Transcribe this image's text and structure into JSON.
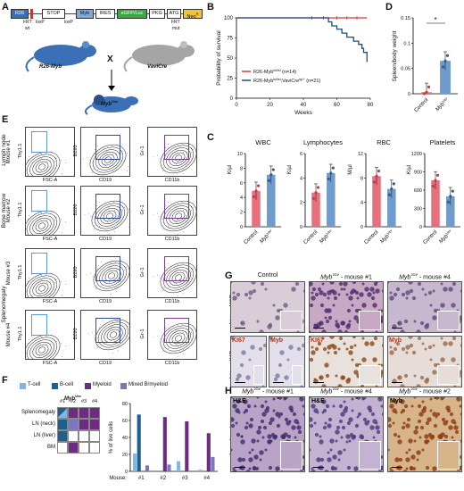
{
  "panels": {
    "A": "A",
    "B": "B",
    "C": "C",
    "D": "D",
    "E": "E",
    "F": "F",
    "G": "G",
    "H": "H"
  },
  "panelA": {
    "construct": [
      "R26",
      "STOP",
      "Myb",
      "IRES",
      "eGFP/Luc",
      "PKG",
      "ATG",
      "Neo"
    ],
    "construct_sup": "R",
    "labels": {
      "frt_wt": "FRT",
      "wt": "wt",
      "loxP1": "loxP",
      "loxP2": "loxP",
      "frt_mut": "FRT",
      "mut": "mut"
    },
    "mouse1": "R26-Myb",
    "mouse2": "VaviCre",
    "cross": "X",
    "offspring": "Myb",
    "offspring_sup": "Vav"
  },
  "panelB": {
    "ylabel": "Probability of survival",
    "xlabel": "Weeks",
    "legend": [
      {
        "name": "R26-Myb",
        "sup": "lsl/lsl",
        "suffix": " (n=14)",
        "color": "#d4373a"
      },
      {
        "name": "R26-Myb",
        "sup": "lsl/lsl",
        "mid": ";VaviCre",
        "sup2": "tg/+",
        "suffix": " (n=21)",
        "color": "#1f4e79"
      }
    ]
  },
  "chart_data": [
    {
      "type": "line",
      "title": "",
      "xlabel": "Weeks",
      "ylabel": "Probability of survival",
      "xlim": [
        0,
        80
      ],
      "ylim": [
        0,
        100
      ],
      "xticks": [
        0,
        20,
        40,
        60,
        80
      ],
      "yticks": [
        0,
        25,
        50,
        75,
        100
      ],
      "series": [
        {
          "name": "R26-Myb lsl/lsl (n=14)",
          "color": "#d4373a",
          "x": [
            0,
            78
          ],
          "y": [
            100,
            100
          ]
        },
        {
          "name": "R26-Myb lsl/lsl;VaviCre tg/+ (n=21)",
          "color": "#1f4e79",
          "x": [
            0,
            52,
            55,
            57,
            60,
            63,
            66,
            70,
            73,
            75,
            76,
            78
          ],
          "y": [
            100,
            100,
            95,
            90,
            86,
            81,
            76,
            71,
            67,
            62,
            57,
            45
          ]
        }
      ]
    },
    {
      "type": "bar",
      "title": "",
      "xlabel": "",
      "ylabel": "Spleen/body weight",
      "ylim": [
        0,
        0.15
      ],
      "yticks": [
        0,
        0.05,
        0.1,
        0.15
      ],
      "categories": [
        "Control",
        "Myb Vav"
      ],
      "values": [
        0.003,
        0.065
      ],
      "annotation": "*"
    },
    {
      "type": "bar",
      "title": "WBC",
      "ylabel": "K/µl",
      "ylim": [
        0,
        10
      ],
      "yticks": [
        0,
        2,
        4,
        6,
        8,
        10
      ],
      "categories": [
        "Control",
        "Myb Vav"
      ],
      "values": [
        4.9,
        7.1
      ]
    },
    {
      "type": "bar",
      "title": "Lymphocytes",
      "ylabel": "K/µl",
      "ylim": [
        0,
        6
      ],
      "yticks": [
        0,
        2,
        4,
        6
      ],
      "categories": [
        "Control",
        "Myb Vav"
      ],
      "values": [
        2.8,
        4.4
      ]
    },
    {
      "type": "bar",
      "title": "RBC",
      "ylabel": "M/µl",
      "ylim": [
        0,
        12
      ],
      "yticks": [
        0,
        4,
        8,
        12
      ],
      "categories": [
        "Control",
        "Myb Vav"
      ],
      "values": [
        8.3,
        6.2
      ]
    },
    {
      "type": "bar",
      "title": "Platelets",
      "ylabel": "K/µl",
      "ylim": [
        0,
        1200
      ],
      "yticks": [
        0,
        300,
        600,
        900,
        1200
      ],
      "categories": [
        "Control",
        "Myb Vav"
      ],
      "values": [
        760,
        500
      ]
    },
    {
      "type": "bar",
      "title": "",
      "ylabel": "% of live cells",
      "ylim": [
        0,
        80
      ],
      "yticks": [
        0,
        20,
        40,
        60,
        80
      ],
      "categories": [
        "#1",
        "#2",
        "#3",
        "#4"
      ],
      "series": [
        {
          "name": "T-cell",
          "color": "#7fb8e6",
          "values": [
            21,
            0,
            12,
            2
          ]
        },
        {
          "name": "B-cell",
          "color": "#1f5f8b",
          "values": [
            67,
            0,
            0,
            0
          ]
        },
        {
          "name": "Myeloid",
          "color": "#6d2c82",
          "values": [
            0,
            64,
            59,
            45
          ]
        },
        {
          "name": "Mixed B/myeloid",
          "color": "#7a76c4",
          "values": [
            7,
            8,
            0,
            17
          ]
        }
      ]
    }
  ],
  "panelC": {
    "x_control": "Control",
    "x_myb": "Myb",
    "x_myb_sup": "Vav"
  },
  "panelD": {
    "ylabel": "Spleen/body weight",
    "x_control": "Control",
    "x_myb": "Myb",
    "x_myb_sup": "Vav",
    "star": "*"
  },
  "panelE": {
    "rows": [
      {
        "group": "Lymph node",
        "mouse": "Mouse #1"
      },
      {
        "group": "Bone marrow",
        "mouse": "Mouse #2"
      },
      {
        "group": "Splenomegaly",
        "mouse": "Mouse #3"
      },
      {
        "group": "",
        "mouse": "Mouse #4"
      }
    ],
    "axes": {
      "c1x": "FSC-A",
      "c1y": "Thy1.1",
      "c2x": "CD19",
      "c2y": "B220",
      "c3x": "CD11b",
      "c3y": "Gr-1"
    }
  },
  "panelF": {
    "legend": [
      {
        "name": "T-cell",
        "color": "#7fb8e6"
      },
      {
        "name": "B-cell",
        "color": "#1f5f8b"
      },
      {
        "name": "Myeloid",
        "color": "#6d2c82"
      },
      {
        "name": "Mixed B/myeloid",
        "color": "#7a76c4"
      }
    ],
    "header": "Myb",
    "header_sup": "Vav",
    "cols": [
      "#1",
      "#2",
      "#3",
      "#4"
    ],
    "rows": [
      "Splenomegaly",
      "LN (neck)",
      "LN (liver)",
      "BM"
    ],
    "ylabel": "% of live cells",
    "mouse_label": "Mouse:"
  },
  "panelG": {
    "cols": [
      "Control",
      "Myb",
      "Myb"
    ],
    "col_sups": [
      "",
      "Vav",
      "Vav"
    ],
    "col_suffix": [
      "",
      " - mouse #1",
      " - mouse #4"
    ],
    "row1": "Liver - H&E",
    "row2": "Liver - IHC",
    "stains": [
      "KI67",
      "Myb",
      "KI67",
      "Myb"
    ]
  },
  "panelH": {
    "cols": [
      "Myb",
      "Myb",
      "Myb"
    ],
    "col_sup": "Vav",
    "col_suffix": [
      " - mouse #1",
      " - mouse #4",
      " - mouse #2"
    ],
    "stains": [
      "H&E",
      "H&E",
      "Myb"
    ],
    "row": "Lymph node"
  }
}
